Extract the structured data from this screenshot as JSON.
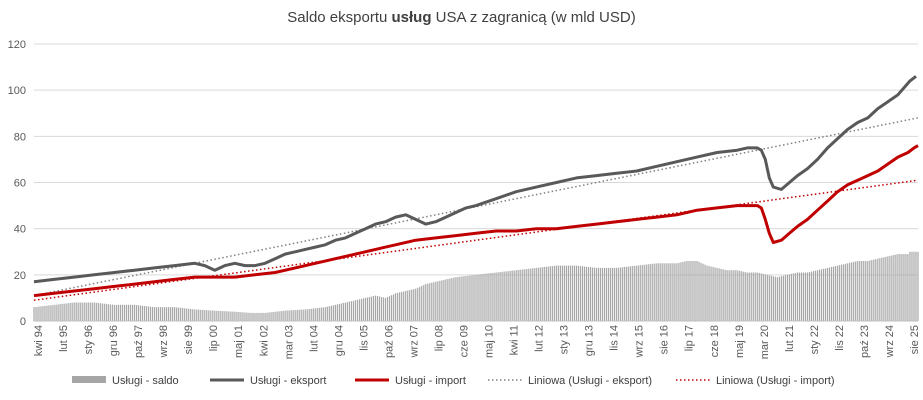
{
  "chart_data": {
    "type": "line",
    "title_parts": [
      "Saldo eksportu ",
      "usług",
      " USA z zagranicą (w mld USD)"
    ],
    "ylim": [
      0,
      120
    ],
    "yticks": [
      0,
      20,
      40,
      60,
      80,
      100,
      120
    ],
    "grid": true,
    "legend_placement": "bottom",
    "x_tick_labels": [
      "kwi 94",
      "lut 95",
      "sty 96",
      "gru 96",
      "paź 97",
      "wrz 98",
      "sie 99",
      "lip 00",
      "maj 01",
      "kwi 02",
      "mar 03",
      "lut 04",
      "gru 04",
      "lis 05",
      "paź 06",
      "wrz 07",
      "lip 08",
      "cze 09",
      "maj 10",
      "kwi 11",
      "lut 12",
      "sty 13",
      "gru 13",
      "lis 14",
      "wrz 15",
      "sie 16",
      "lip 17",
      "cze 18",
      "maj 19",
      "mar 20",
      "lut 21",
      "sty 22",
      "lis 22",
      "paź 23",
      "wrz 24",
      "sie 25"
    ],
    "x_range": [
      "kwi 94",
      "sie 25"
    ],
    "series": [
      {
        "name": "Usługi - saldo",
        "kind": "bar",
        "color": "#a6a6a6",
        "points": [
          [
            0,
            6
          ],
          [
            10,
            7
          ],
          [
            20,
            8
          ],
          [
            30,
            8
          ],
          [
            40,
            7
          ],
          [
            50,
            7
          ],
          [
            60,
            6
          ],
          [
            70,
            6
          ],
          [
            80,
            5
          ],
          [
            90,
            4.5
          ],
          [
            100,
            4
          ],
          [
            108,
            3.5
          ],
          [
            115,
            3.5
          ],
          [
            125,
            4.5
          ],
          [
            135,
            5
          ],
          [
            145,
            6
          ],
          [
            150,
            7
          ],
          [
            160,
            9
          ],
          [
            165,
            10
          ],
          [
            170,
            11
          ],
          [
            175,
            10
          ],
          [
            180,
            12
          ],
          [
            185,
            13
          ],
          [
            190,
            14
          ],
          [
            195,
            16
          ],
          [
            200,
            17
          ],
          [
            210,
            19
          ],
          [
            220,
            20
          ],
          [
            230,
            21
          ],
          [
            240,
            22
          ],
          [
            250,
            23
          ],
          [
            260,
            24
          ],
          [
            270,
            24
          ],
          [
            280,
            23
          ],
          [
            290,
            23
          ],
          [
            300,
            24
          ],
          [
            310,
            25
          ],
          [
            320,
            25
          ],
          [
            325,
            26
          ],
          [
            330,
            26
          ],
          [
            335,
            24
          ],
          [
            340,
            23
          ],
          [
            345,
            22
          ],
          [
            350,
            22
          ],
          [
            355,
            21
          ],
          [
            360,
            21
          ],
          [
            365,
            20
          ],
          [
            370,
            19
          ],
          [
            375,
            20
          ],
          [
            380,
            21
          ],
          [
            385,
            21
          ],
          [
            390,
            22
          ],
          [
            395,
            23
          ],
          [
            400,
            24
          ],
          [
            405,
            25
          ],
          [
            410,
            26
          ],
          [
            415,
            26
          ],
          [
            420,
            27
          ],
          [
            425,
            28
          ],
          [
            430,
            29
          ],
          [
            435,
            29
          ],
          [
            436,
            30
          ]
        ]
      },
      {
        "name": "Usługi - eksport",
        "kind": "line",
        "color": "#595959",
        "points": [
          [
            0,
            17
          ],
          [
            10,
            18
          ],
          [
            20,
            19
          ],
          [
            30,
            20
          ],
          [
            40,
            21
          ],
          [
            50,
            22
          ],
          [
            60,
            23
          ],
          [
            70,
            24
          ],
          [
            80,
            25
          ],
          [
            85,
            24
          ],
          [
            90,
            22
          ],
          [
            95,
            24
          ],
          [
            100,
            25
          ],
          [
            105,
            24
          ],
          [
            110,
            24
          ],
          [
            115,
            25
          ],
          [
            120,
            27
          ],
          [
            125,
            29
          ],
          [
            130,
            30
          ],
          [
            135,
            31
          ],
          [
            140,
            32
          ],
          [
            145,
            33
          ],
          [
            150,
            35
          ],
          [
            155,
            36
          ],
          [
            160,
            38
          ],
          [
            165,
            40
          ],
          [
            170,
            42
          ],
          [
            175,
            43
          ],
          [
            180,
            45
          ],
          [
            185,
            46
          ],
          [
            190,
            44
          ],
          [
            195,
            42
          ],
          [
            200,
            43
          ],
          [
            205,
            45
          ],
          [
            210,
            47
          ],
          [
            215,
            49
          ],
          [
            220,
            50
          ],
          [
            230,
            53
          ],
          [
            240,
            56
          ],
          [
            250,
            58
          ],
          [
            260,
            60
          ],
          [
            270,
            62
          ],
          [
            280,
            63
          ],
          [
            290,
            64
          ],
          [
            300,
            65
          ],
          [
            310,
            67
          ],
          [
            320,
            69
          ],
          [
            330,
            71
          ],
          [
            340,
            73
          ],
          [
            350,
            74
          ],
          [
            355,
            75
          ],
          [
            360,
            75
          ],
          [
            362,
            74
          ],
          [
            364,
            70
          ],
          [
            366,
            62
          ],
          [
            368,
            58
          ],
          [
            372,
            57
          ],
          [
            376,
            60
          ],
          [
            380,
            63
          ],
          [
            385,
            66
          ],
          [
            390,
            70
          ],
          [
            395,
            75
          ],
          [
            400,
            79
          ],
          [
            405,
            83
          ],
          [
            410,
            86
          ],
          [
            415,
            88
          ],
          [
            420,
            92
          ],
          [
            425,
            95
          ],
          [
            430,
            98
          ],
          [
            433,
            101
          ],
          [
            436,
            104
          ],
          [
            439,
            106
          ]
        ]
      },
      {
        "name": "Usługi - import",
        "kind": "line",
        "color": "#c00000",
        "points": [
          [
            0,
            11
          ],
          [
            10,
            12
          ],
          [
            20,
            13
          ],
          [
            30,
            14
          ],
          [
            40,
            15
          ],
          [
            50,
            16
          ],
          [
            60,
            17
          ],
          [
            70,
            18
          ],
          [
            80,
            19
          ],
          [
            90,
            19
          ],
          [
            100,
            19
          ],
          [
            110,
            20
          ],
          [
            120,
            21
          ],
          [
            130,
            23
          ],
          [
            140,
            25
          ],
          [
            150,
            27
          ],
          [
            160,
            29
          ],
          [
            170,
            31
          ],
          [
            180,
            33
          ],
          [
            190,
            35
          ],
          [
            200,
            36
          ],
          [
            210,
            37
          ],
          [
            220,
            38
          ],
          [
            230,
            39
          ],
          [
            240,
            39
          ],
          [
            250,
            40
          ],
          [
            260,
            40
          ],
          [
            270,
            41
          ],
          [
            280,
            42
          ],
          [
            290,
            43
          ],
          [
            300,
            44
          ],
          [
            310,
            45
          ],
          [
            320,
            46
          ],
          [
            330,
            48
          ],
          [
            340,
            49
          ],
          [
            350,
            50
          ],
          [
            355,
            50
          ],
          [
            360,
            50
          ],
          [
            362,
            49
          ],
          [
            364,
            44
          ],
          [
            366,
            38
          ],
          [
            368,
            34
          ],
          [
            372,
            35
          ],
          [
            376,
            38
          ],
          [
            380,
            41
          ],
          [
            385,
            44
          ],
          [
            390,
            48
          ],
          [
            395,
            52
          ],
          [
            400,
            56
          ],
          [
            405,
            59
          ],
          [
            410,
            61
          ],
          [
            415,
            63
          ],
          [
            420,
            65
          ],
          [
            425,
            68
          ],
          [
            430,
            71
          ],
          [
            435,
            73
          ],
          [
            438,
            75
          ],
          [
            440,
            76
          ]
        ]
      },
      {
        "name": "Liniowa (Usługi - eksport)",
        "kind": "trend",
        "color": "#808080",
        "points": [
          [
            0,
            11
          ],
          [
            440,
            88
          ]
        ]
      },
      {
        "name": "Liniowa (Usługi - import)",
        "kind": "trend",
        "color": "#c00000",
        "points": [
          [
            0,
            9
          ],
          [
            440,
            61
          ]
        ]
      }
    ]
  }
}
